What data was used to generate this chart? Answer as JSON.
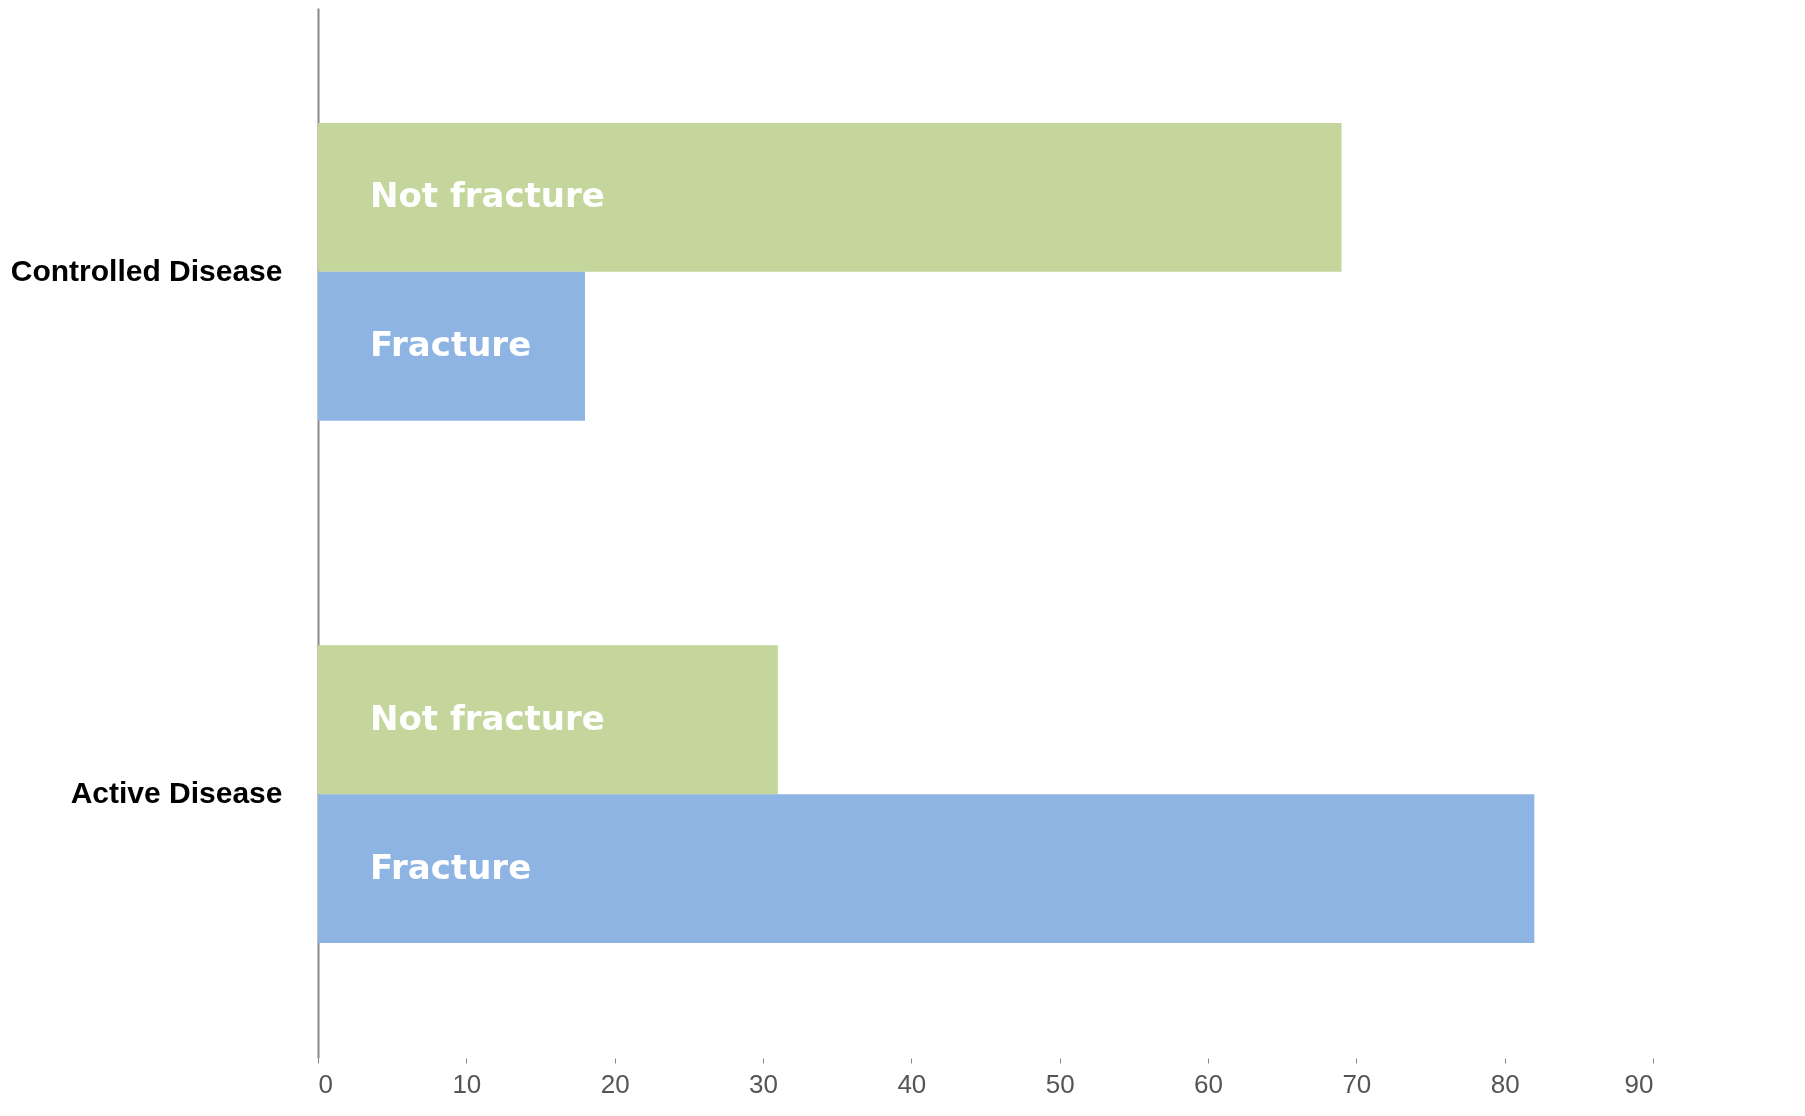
{
  "chart_data": {
    "type": "bar",
    "orientation": "horizontal",
    "categories": [
      "Controlled Disease",
      "Active Disease"
    ],
    "series": [
      {
        "name": "Not fracture",
        "color": "#c4d69b",
        "values": [
          69,
          31
        ]
      },
      {
        "name": "Fracture",
        "color": "#8eb4e3",
        "values": [
          18,
          82
        ]
      }
    ],
    "xlim": [
      0,
      90
    ],
    "xticks": [
      0,
      10,
      20,
      30,
      40,
      50,
      60,
      70,
      80,
      90
    ],
    "grid": false,
    "legend": false
  }
}
